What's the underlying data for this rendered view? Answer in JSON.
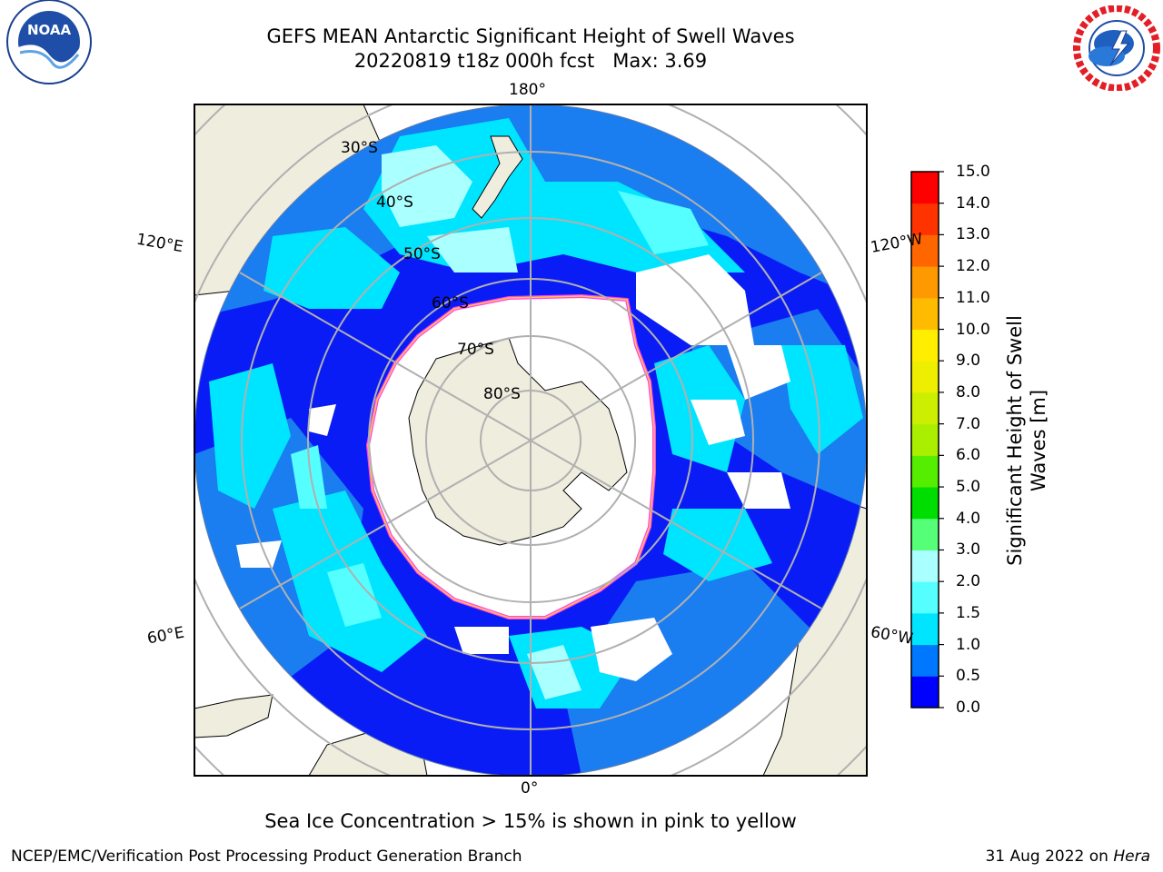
{
  "title": {
    "line1": "GEFS MEAN Antarctic Significant Height of Swell Waves",
    "line2": "20220819 t18z 000h fcst   Max: 3.69"
  },
  "logos": {
    "left": {
      "icon": "noaa-logo",
      "text": "NOAA",
      "ring_text": "NATIONAL OCEANIC AND ATMOSPHERIC ADMINISTRATION · U.S. DEPARTMENT OF COMMERCE"
    },
    "right": {
      "icon": "nws-logo",
      "ring_text": "NATIONAL WEATHER SERVICE"
    }
  },
  "map": {
    "projection": "south-polar-stereographic",
    "longitude_labels": {
      "top": "180°",
      "bottom": "0°",
      "upper_left": "120°E",
      "lower_left": "60°E",
      "upper_right": "120°W",
      "lower_right": "60°W"
    },
    "latitude_labels": [
      "30°S",
      "40°S",
      "50°S",
      "60°S",
      "70°S",
      "80°S"
    ],
    "colors": {
      "land": "#efedde",
      "sea_ice": "#ffffff",
      "ice_edge": "#ff40ff",
      "ice_edge_inner": "#ffcc33",
      "grid": "#b0b0b0"
    }
  },
  "colorbar": {
    "label": "Significant Height of Swell Waves [m]",
    "ticks": [
      "0.0",
      "0.5",
      "1.0",
      "1.5",
      "2.0",
      "3.0",
      "4.0",
      "5.0",
      "6.0",
      "7.0",
      "8.0",
      "9.0",
      "10.0",
      "11.0",
      "12.0",
      "13.0",
      "14.0",
      "15.0"
    ],
    "colors": [
      "#0000ff",
      "#0077ff",
      "#00e5ff",
      "#55ffff",
      "#aaffff",
      "#55ff77",
      "#00dd00",
      "#55ee00",
      "#aaee00",
      "#ccee00",
      "#eeee00",
      "#ffee00",
      "#ffbb00",
      "#ff9900",
      "#ff6600",
      "#ff3300",
      "#ff0000"
    ]
  },
  "footer": {
    "note": "Sea Ice Concentration > 15% is shown in pink to yellow",
    "credit": "NCEP/EMC/Verification Post Processing Product Generation Branch",
    "date": "31 Aug 2022 on ",
    "machine": "Hera"
  }
}
